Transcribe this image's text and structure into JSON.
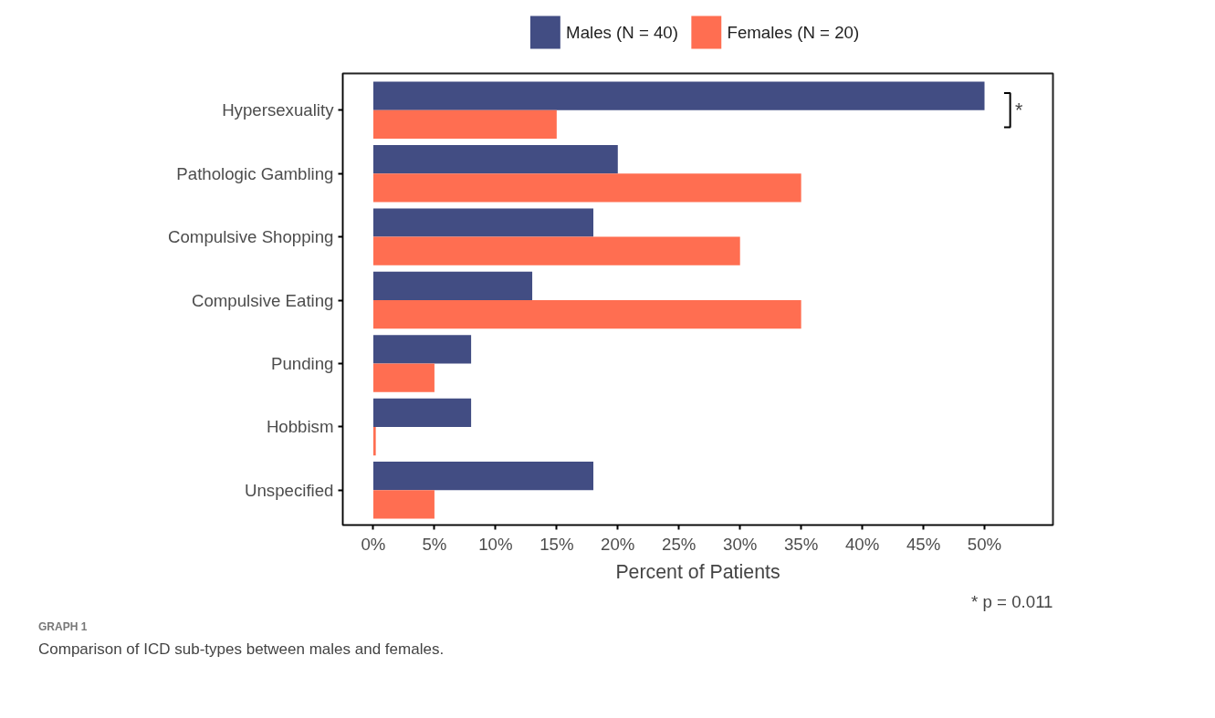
{
  "chart_data": {
    "type": "bar",
    "orientation": "horizontal",
    "title": "GRAPH 1",
    "subtitle": "Comparison of ICD sub-types between males and females.",
    "xlabel": "Percent of Patients",
    "categories": [
      "Hypersexuality",
      "Pathologic Gambling",
      "Compulsive Shopping",
      "Compulsive Eating",
      "Punding",
      "Hobbism",
      "Unspecified"
    ],
    "series": [
      {
        "name": "Males (N = 40)",
        "color": "#424d83",
        "values": [
          50,
          20,
          18,
          13,
          8,
          8,
          18
        ]
      },
      {
        "name": "Females (N = 20)",
        "color": "#ff6e51",
        "values": [
          15,
          35,
          30,
          35,
          5,
          0.2,
          5
        ]
      }
    ],
    "xlim": [
      -2.5,
      55.6
    ],
    "xticks": [
      {
        "value": 0,
        "label": "0%"
      },
      {
        "value": 5,
        "label": "5%"
      },
      {
        "value": 10,
        "label": "10%"
      },
      {
        "value": 15,
        "label": "15%"
      },
      {
        "value": 20,
        "label": "20%"
      },
      {
        "value": 25,
        "label": "25%"
      },
      {
        "value": 30,
        "label": "30%"
      },
      {
        "value": 35,
        "label": "35%"
      },
      {
        "value": 40,
        "label": "40%"
      },
      {
        "value": 45,
        "label": "45%"
      },
      {
        "value": 50,
        "label": "50%"
      }
    ],
    "annotations": [
      "*",
      "* p = 0.011"
    ],
    "legend": "top",
    "grid": false
  }
}
